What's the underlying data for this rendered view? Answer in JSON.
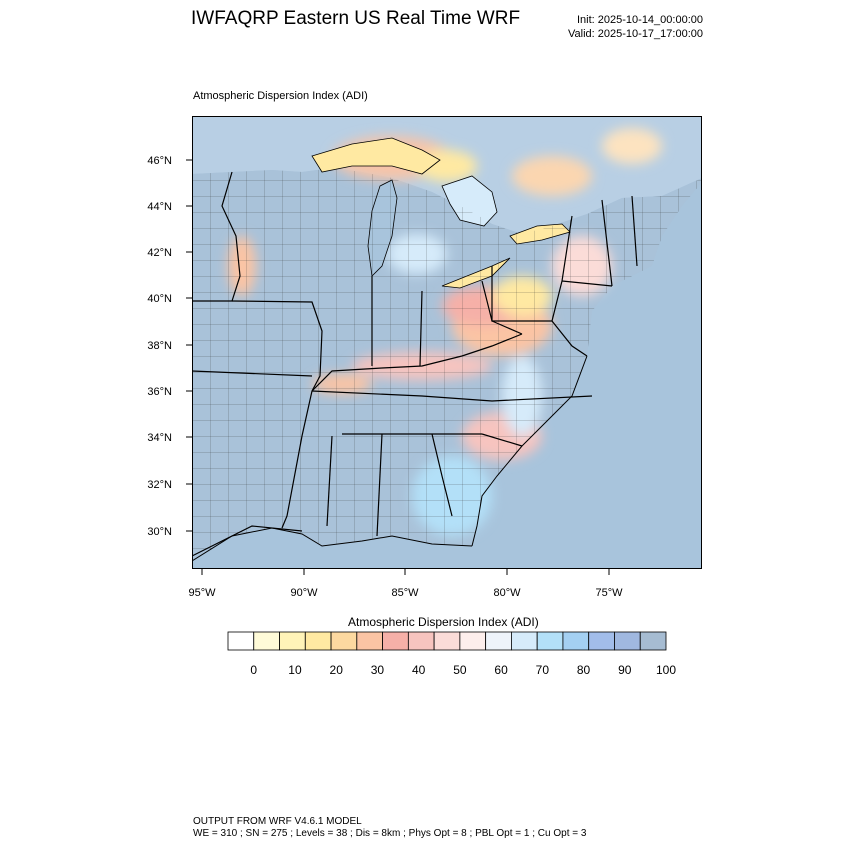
{
  "title": "IWFAQRP Eastern US Real Time WRF",
  "init_time": "Init: 2025-10-14_00:00:00",
  "valid_time": "Valid: 2025-10-17_17:00:00",
  "field_title": "Atmospheric Dispersion Index   (ADI)",
  "map": {
    "lat_ticks": [
      "46°N",
      "44°N",
      "42°N",
      "40°N",
      "38°N",
      "36°N",
      "34°N",
      "32°N",
      "30°N"
    ],
    "lon_ticks": [
      "95°W",
      "90°W",
      "85°W",
      "80°W",
      "75°W"
    ],
    "ocean_color": "#a8c4dc",
    "dominant_color": "#a9c2d9"
  },
  "colorbar": {
    "title": "Atmospheric Dispersion Index  (ADI)",
    "labels": [
      "0",
      "10",
      "20",
      "30",
      "40",
      "50",
      "60",
      "70",
      "80",
      "90",
      "100"
    ],
    "colors": [
      "#ffffff",
      "#fffbd8",
      "#fff3b8",
      "#ffe9a2",
      "#fdd9a0",
      "#fbc4a4",
      "#f6b0a8",
      "#f7c4bf",
      "#fbdcd8",
      "#fdeeec",
      "#eef3fa",
      "#d6ebfa",
      "#b3e0f8",
      "#a4d0f2",
      "#a2bdea",
      "#a0b8e0",
      "#a6bcd2"
    ]
  },
  "footer": {
    "line1": "OUTPUT FROM WRF V4.6.1 MODEL",
    "line2": "WE = 310 ; SN = 275 ; Levels = 38 ; Dis = 8km ; Phys Opt = 8 ; PBL Opt = 1 ; Cu Opt = 3"
  }
}
